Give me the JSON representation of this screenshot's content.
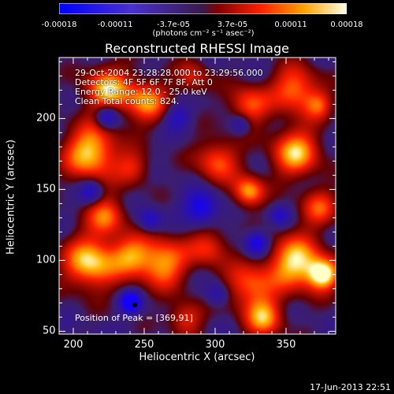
{
  "colorbar": {
    "ticks": [
      {
        "label": "-0.00018",
        "value": -0.00018
      },
      {
        "label": "-0.00011",
        "value": -0.00011
      },
      {
        "label": "-3.7e-05",
        "value": -3.7e-05
      },
      {
        "label": "3.7e-05",
        "value": 3.7e-05
      },
      {
        "label": "0.00011",
        "value": 0.00011
      },
      {
        "label": "0.00018",
        "value": 0.00018
      }
    ],
    "unit": "(photons cm⁻² s⁻¹ asec⁻²)",
    "range": [
      -0.00018,
      0.00018
    ]
  },
  "title": "Reconstructed RHESSI Image",
  "info": {
    "time_range": "29-Oct-2004 23:28:28.000 to 23:29:56.000",
    "detectors": "Detectors: 4F 5F 6F 7F 8F, Att 0",
    "energy": "Energy Range: 12.0 - 25.0 keV",
    "clean": "Clean    Total counts: 824.",
    "peak": "Position of Peak = [369,91]"
  },
  "axes": {
    "xlabel": "Heliocentric X (arcsec)",
    "ylabel": "Heliocentric Y (arcsec)",
    "xticks": [
      {
        "label": "200",
        "value": 200
      },
      {
        "label": "250",
        "value": 250
      },
      {
        "label": "300",
        "value": 300
      },
      {
        "label": "350",
        "value": 350
      }
    ],
    "yticks": [
      {
        "label": "50",
        "value": 50
      },
      {
        "label": "100",
        "value": 100
      },
      {
        "label": "150",
        "value": 150
      },
      {
        "label": "200",
        "value": 200
      }
    ],
    "xlim": [
      190,
      385
    ],
    "ylim": [
      48,
      243
    ]
  },
  "timestamp": "17-Jun-2013 22:51",
  "colors": {
    "background": "#000000",
    "foreground": "#ffffff"
  }
}
